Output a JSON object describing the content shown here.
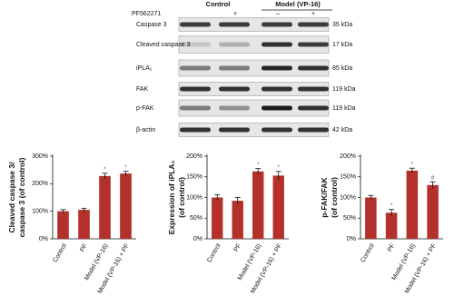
{
  "blot": {
    "treatment_label": "PF562271",
    "groups": [
      "Control",
      "Model (VP-16)"
    ],
    "lane_marks": [
      "+",
      "–",
      "+"
    ],
    "rows": [
      {
        "label": "Caspase 3",
        "size": "35 kDa"
      },
      {
        "label": "Cleaved caspase 3",
        "size": "17 kDa"
      },
      {
        "label": "iPLA₂",
        "size": "85 kDa"
      },
      {
        "label": "FAK",
        "size": "119 kDa"
      },
      {
        "label": "p-FAK",
        "size": "119 kDa"
      },
      {
        "label": "β-actin",
        "size": "42 kDa"
      }
    ]
  },
  "chart_data": [
    {
      "type": "bar",
      "ylabel": [
        "Cleaved caspase 3/",
        "caspase 3 (of control)"
      ],
      "categories": [
        "Control",
        "PF",
        "Model (VP-16)",
        "Model (VP-16) + PF"
      ],
      "values": [
        100,
        105,
        228,
        237
      ],
      "errors": [
        6,
        6,
        10,
        8
      ],
      "annotations": [
        null,
        null,
        "*",
        "*"
      ],
      "color": "#b3302b",
      "ylim": [
        0,
        300
      ],
      "yticks": [
        {
          "value": 0,
          "label": "0%"
        },
        {
          "value": 100,
          "label": "100%"
        },
        {
          "value": 200,
          "label": "200%"
        },
        {
          "value": 300,
          "label": "300%"
        }
      ]
    },
    {
      "type": "bar",
      "ylabel": [
        "Expression of iPLA₂",
        "(of control)"
      ],
      "categories": [
        "Control",
        "PF",
        "Model (VP-16)",
        "Model (VP-16) + PF"
      ],
      "values": [
        100,
        92,
        163,
        153
      ],
      "errors": [
        7,
        8,
        7,
        10
      ],
      "annotations": [
        null,
        null,
        "*",
        "*"
      ],
      "color": "#b3302b",
      "ylim": [
        0,
        200
      ],
      "yticks": [
        {
          "value": 0,
          "label": "0%"
        },
        {
          "value": 50,
          "label": "50%"
        },
        {
          "value": 100,
          "label": "100%"
        },
        {
          "value": 150,
          "label": "150%"
        },
        {
          "value": 200,
          "label": "200%"
        }
      ]
    },
    {
      "type": "bar",
      "ylabel": [
        "p-FAK/FAK",
        "(of control)"
      ],
      "categories": [
        "Control",
        "PF",
        "Model (VP-16)",
        "Model (VP-16) + PF"
      ],
      "values": [
        100,
        63,
        165,
        130
      ],
      "errors": [
        5,
        8,
        6,
        8
      ],
      "annotations": [
        null,
        "*",
        "*",
        "#"
      ],
      "color": "#b3302b",
      "ylim": [
        0,
        200
      ],
      "yticks": [
        {
          "value": 0,
          "label": "0%"
        },
        {
          "value": 50,
          "label": "50%"
        },
        {
          "value": 100,
          "label": "100%"
        },
        {
          "value": 150,
          "label": "150%"
        },
        {
          "value": 200,
          "label": "200%"
        }
      ]
    }
  ]
}
